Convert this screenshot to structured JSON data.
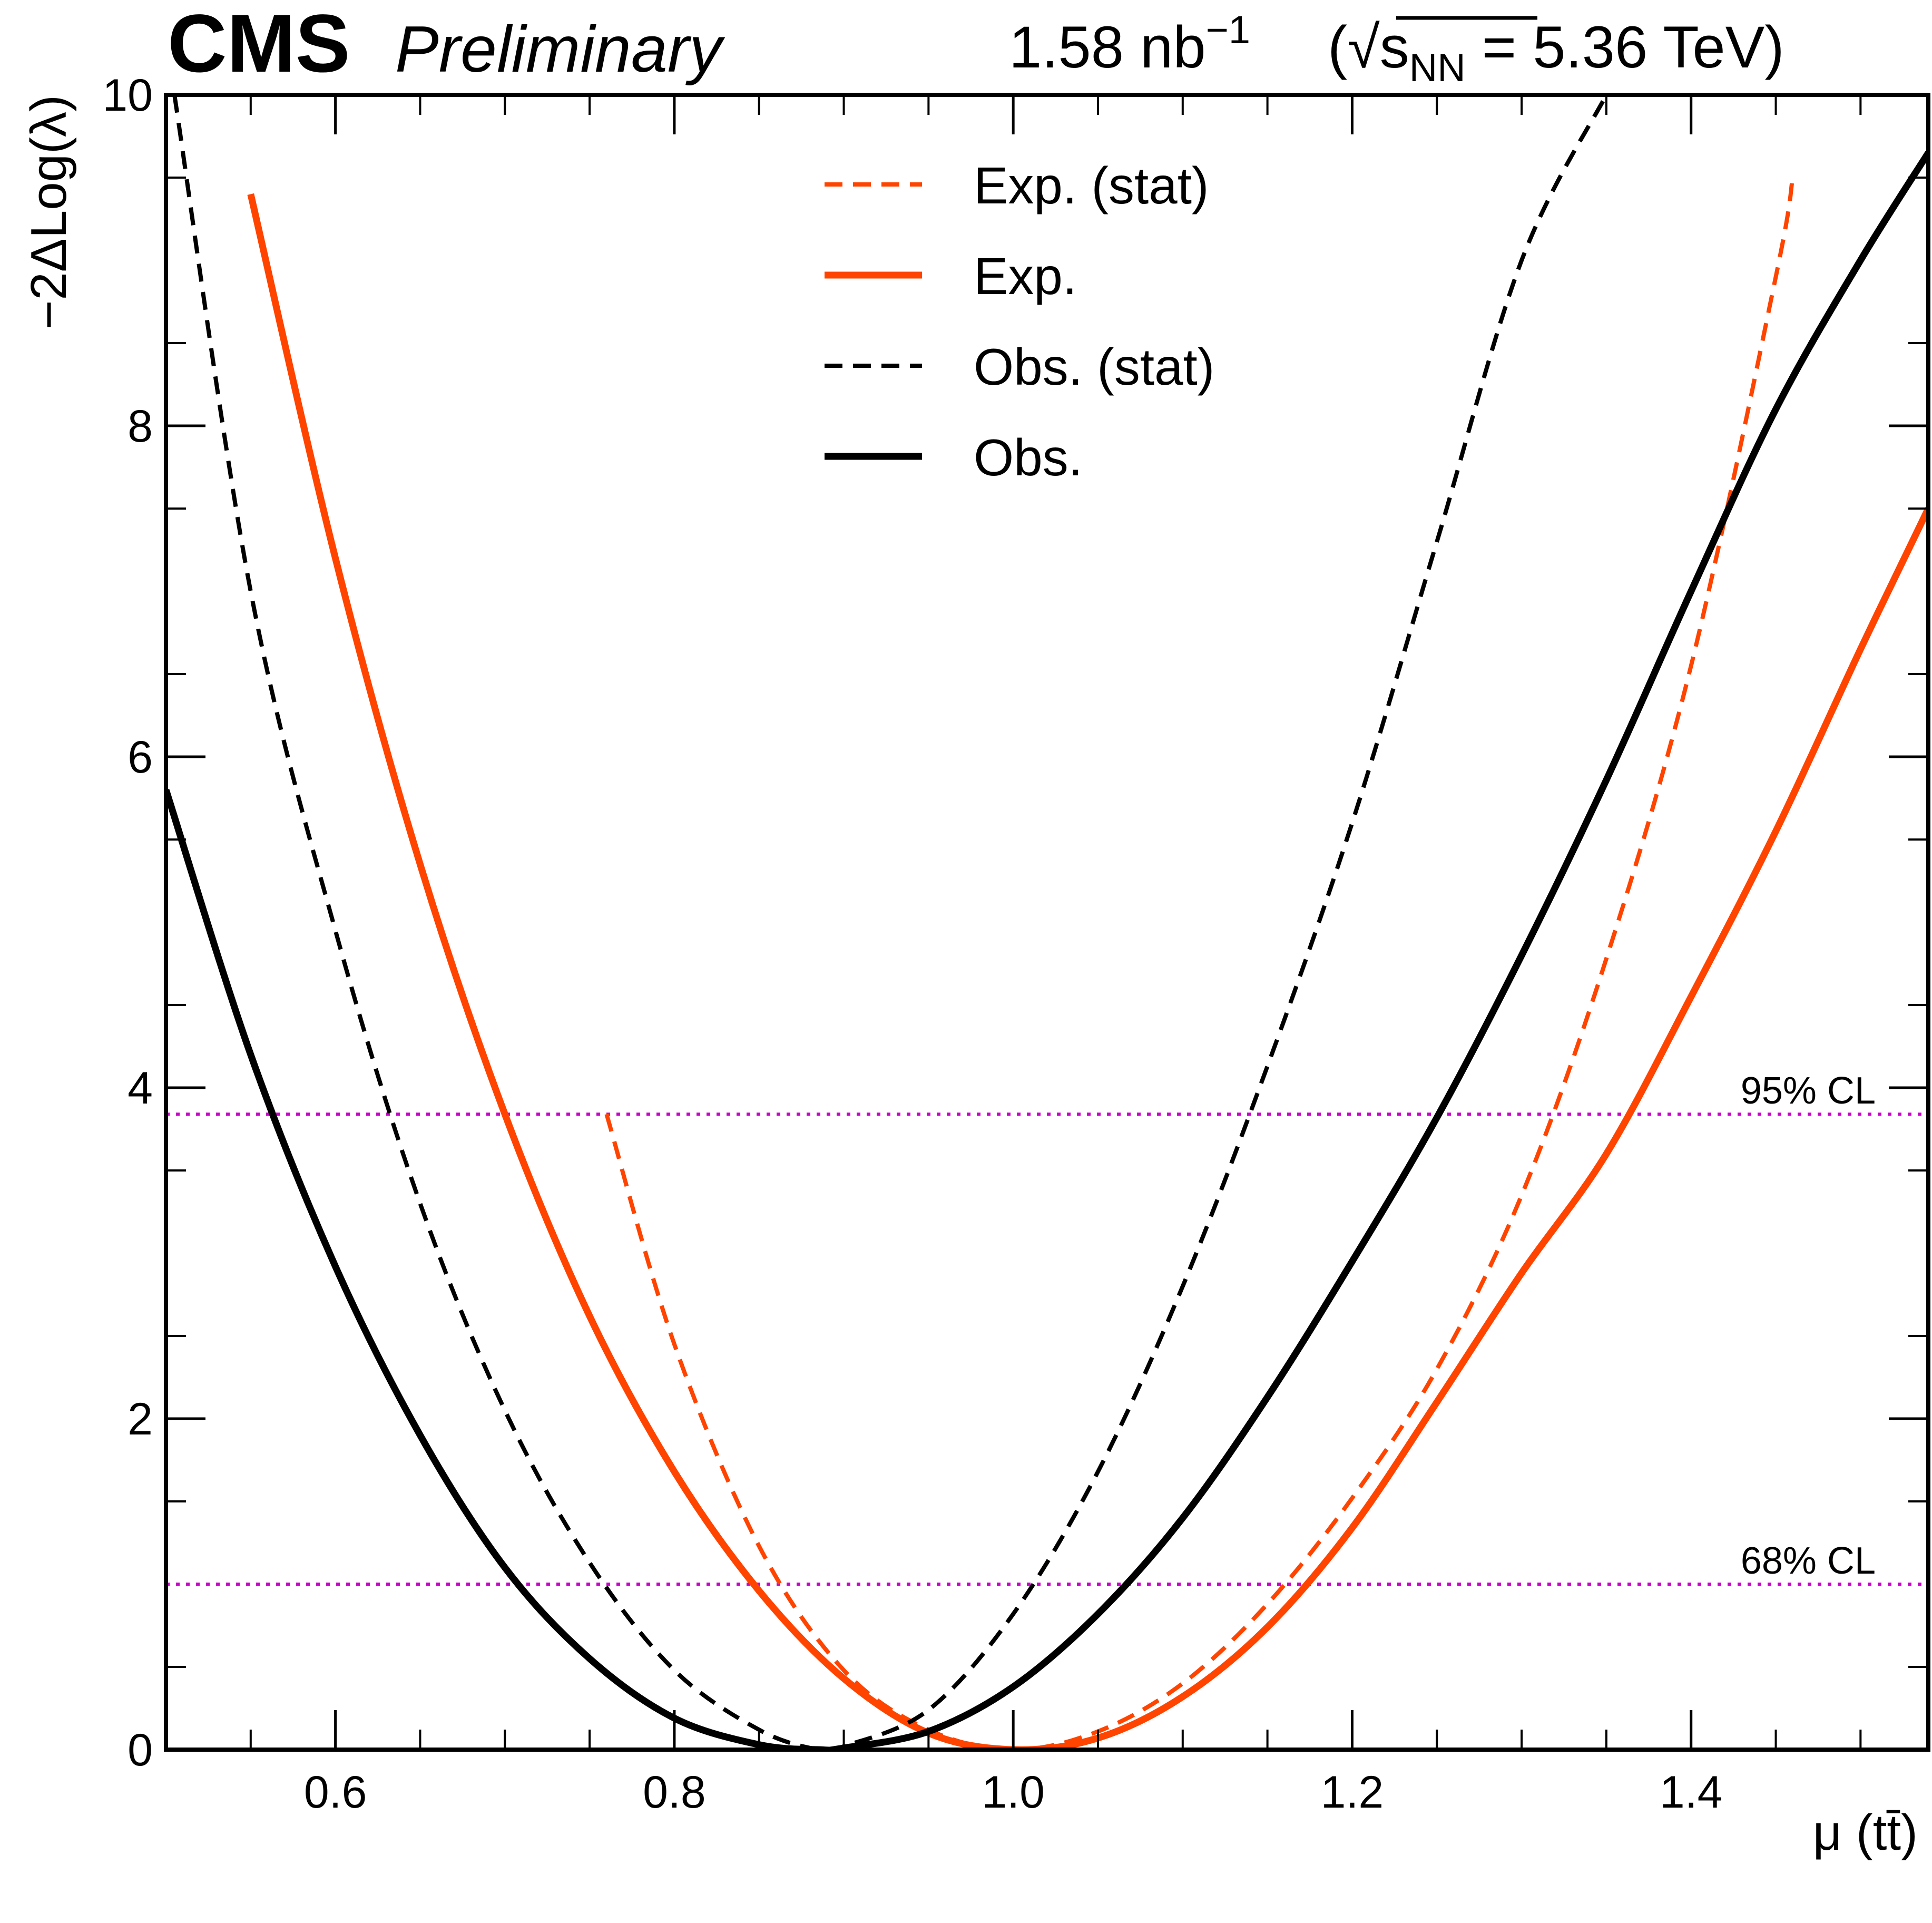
{
  "header": {
    "experiment": "CMS",
    "status": "Preliminary",
    "lumi_value": "1.58 nb",
    "lumi_exp": "−1",
    "energy_prefix": "(",
    "energy_sqrt": "√",
    "energy_s": "s",
    "energy_sub": "NN",
    "energy_value": " = 5.36 TeV)"
  },
  "chart_data": {
    "type": "line",
    "xlabel": "μ (tt̄)",
    "ylabel": "−2ΔLog(λ)",
    "xlim": [
      0.5,
      1.54
    ],
    "ylim": [
      0,
      10
    ],
    "x_ticks": [
      "0.6",
      "0.8",
      "1.0",
      "1.2",
      "1.4"
    ],
    "x_tick_values": [
      0.6,
      0.8,
      1.0,
      1.2,
      1.4
    ],
    "y_ticks": [
      "0",
      "2",
      "4",
      "6",
      "8",
      "10"
    ],
    "y_tick_values": [
      0,
      2,
      4,
      6,
      8,
      10
    ],
    "grid": false,
    "legend_position": "top-center",
    "reference_lines": [
      {
        "label": "68% CL",
        "y": 1.0,
        "color": "#cc00cc",
        "style": "dotted"
      },
      {
        "label": "95% CL",
        "y": 3.84,
        "color": "#cc00cc",
        "style": "dotted"
      }
    ],
    "series": [
      {
        "name": "Exp. (stat)",
        "color": "#ff4400",
        "style": "dashed",
        "x": [
          0.76,
          0.8,
          0.85,
          0.9,
          0.95,
          1.0,
          1.05,
          1.1,
          1.15,
          1.2,
          1.25,
          1.3,
          1.35,
          1.4,
          1.45,
          1.46
        ],
        "y": [
          3.84,
          2.45,
          1.23,
          0.48,
          0.12,
          0.0,
          0.11,
          0.4,
          0.88,
          1.52,
          2.3,
          3.35,
          4.78,
          6.55,
          8.9,
          9.5
        ]
      },
      {
        "name": "Exp.",
        "color": "#ff4400",
        "style": "solid",
        "x": [
          0.55,
          0.6,
          0.65,
          0.7,
          0.75,
          0.8,
          0.85,
          0.9,
          0.95,
          1.0,
          1.05,
          1.1,
          1.15,
          1.2,
          1.25,
          1.3,
          1.35,
          1.4,
          1.45,
          1.5,
          1.54
        ],
        "y": [
          9.4,
          7.2,
          5.35,
          3.84,
          2.62,
          1.68,
          0.96,
          0.43,
          0.1,
          0.0,
          0.07,
          0.32,
          0.74,
          1.34,
          2.1,
          2.88,
          3.6,
          4.55,
          5.55,
          6.65,
          7.5
        ]
      },
      {
        "name": "Obs. (stat)",
        "color": "#000000",
        "style": "dashed",
        "x": [
          0.505,
          0.55,
          0.6,
          0.65,
          0.7,
          0.75,
          0.8,
          0.85,
          0.885,
          0.9,
          0.95,
          1.0,
          1.05,
          1.1,
          1.15,
          1.2,
          1.25,
          1.3,
          1.35
        ],
        "y": [
          10.0,
          7.0,
          4.95,
          3.3,
          2.05,
          1.13,
          0.48,
          0.12,
          0.0,
          0.02,
          0.24,
          0.82,
          1.68,
          2.8,
          4.13,
          5.6,
          7.3,
          9.0,
          10.0
        ]
      },
      {
        "name": "Obs.",
        "color": "#000000",
        "style": "solid",
        "x": [
          0.5,
          0.55,
          0.6,
          0.65,
          0.7,
          0.75,
          0.8,
          0.85,
          0.885,
          0.9,
          0.95,
          1.0,
          1.05,
          1.1,
          1.15,
          1.2,
          1.25,
          1.3,
          1.35,
          1.4,
          1.45,
          1.5,
          1.54
        ],
        "y": [
          5.8,
          4.2,
          2.92,
          1.9,
          1.1,
          0.55,
          0.19,
          0.03,
          0.0,
          0.01,
          0.11,
          0.38,
          0.82,
          1.4,
          2.13,
          2.95,
          3.82,
          4.8,
          5.86,
          7.0,
          8.1,
          9.0,
          9.65
        ]
      }
    ]
  }
}
